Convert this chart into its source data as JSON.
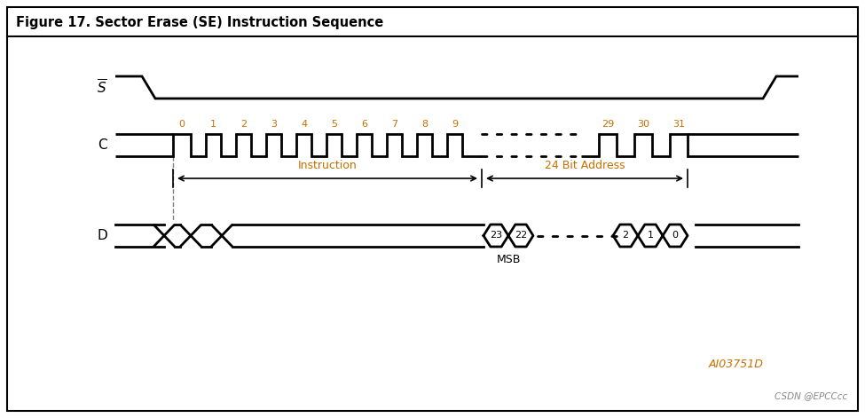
{
  "title": "Figure 17. Sector Erase (SE) Instruction Sequence",
  "figure_size": [
    9.75,
    4.71
  ],
  "dpi": 100,
  "bg_color": "#ffffff",
  "border_color": "#000000",
  "line_color": "#000000",
  "orange_color": "#c87000",
  "watermark_color": "#c87000",
  "watermark_text": "AI03751D",
  "csdn_text": "CSDN @EPCCcc",
  "s_label": "$\\overline{S}$",
  "c_label": "C",
  "d_label": "D",
  "instruction_label": "Instruction",
  "address_label": "24 Bit Address",
  "msb_label": "MSB",
  "clk_numbers_early": [
    "0",
    "1",
    "2",
    "3",
    "4",
    "5",
    "6",
    "7",
    "8",
    "9"
  ],
  "clk_numbers_late": [
    "29",
    "30",
    "31"
  ],
  "d_hex_left": [
    "23",
    "22"
  ],
  "d_hex_right": [
    "2",
    "1",
    "0"
  ]
}
